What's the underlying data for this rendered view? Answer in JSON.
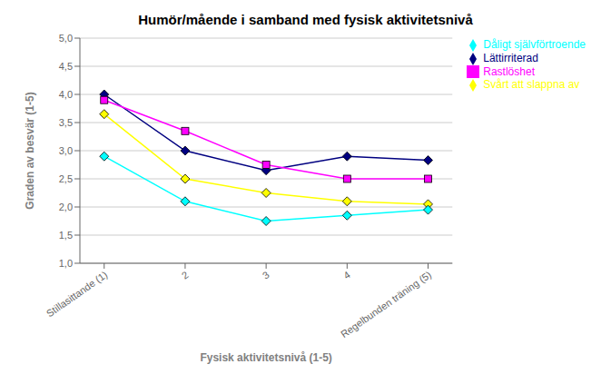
{
  "chart_data": {
    "type": "line",
    "title": "Humör/mående i samband med fysisk aktivitetsnivå",
    "xlabel": "Fysisk aktivitetsnivå (1-5)",
    "ylabel": "Graden av besvär (1-5)",
    "x": [
      1,
      2,
      3,
      4,
      5
    ],
    "xlim": [
      0.7,
      5.3
    ],
    "xticks": [
      {
        "value": 1,
        "label": "Stillasittande (1)"
      },
      2,
      3,
      4,
      {
        "value": 5,
        "label": "Regelbunden träning (5)"
      }
    ],
    "ylim": [
      1.0,
      5.0
    ],
    "yticks": [
      {
        "value": 1.0,
        "label": "1,0"
      },
      {
        "value": 1.5,
        "label": "1,5"
      },
      {
        "value": 2.0,
        "label": "2,0"
      },
      {
        "value": 2.5,
        "label": "2,5"
      },
      {
        "value": 3.0,
        "label": "3,0"
      },
      {
        "value": 3.5,
        "label": "3,5"
      },
      {
        "value": 4.0,
        "label": "4,0"
      },
      {
        "value": 4.5,
        "label": "4,5"
      },
      {
        "value": 5.0,
        "label": "5,0"
      }
    ],
    "grid": "y",
    "legend": "right",
    "series": [
      {
        "name": "Lättirriterad",
        "color": "#000080",
        "marker": "diamond",
        "values": [
          4.0,
          3.0,
          2.65,
          2.9,
          2.83
        ]
      },
      {
        "name": "Rastlöshet",
        "color": "#FF00FF",
        "marker": "square",
        "values": [
          3.9,
          3.35,
          2.75,
          2.5,
          2.5
        ]
      },
      {
        "name": "Svårt att slappna av",
        "color": "#FFFF00",
        "marker": "diamond",
        "values": [
          3.65,
          2.5,
          2.25,
          2.1,
          2.05
        ]
      },
      {
        "name": "Dåligt självförtroende",
        "color": "#00FFFF",
        "marker": "diamond",
        "values": [
          2.9,
          2.1,
          1.75,
          1.85,
          1.95
        ]
      }
    ]
  }
}
